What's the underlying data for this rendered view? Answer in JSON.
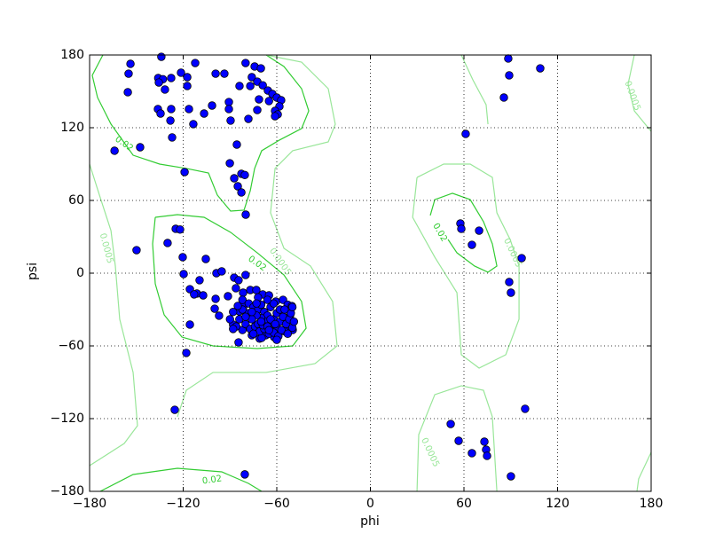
{
  "chart_data": {
    "type": "scatter",
    "x_label": "phi",
    "y_label": "psi",
    "xlim": [
      -180,
      180
    ],
    "ylim": [
      -180,
      180
    ],
    "xticks": [
      {
        "value": -180,
        "label": "−180"
      },
      {
        "value": -120,
        "label": "−120"
      },
      {
        "value": -60,
        "label": "−60"
      },
      0,
      60,
      120,
      180
    ],
    "yticks": [
      {
        "value": -180,
        "label": "−180"
      },
      {
        "value": -120,
        "label": "−120"
      },
      {
        "value": -60,
        "label": "−60"
      },
      0,
      60,
      120,
      180
    ],
    "grid": true,
    "series": [
      {
        "color": "#0000ff",
        "x": [
          -153.8,
          -155,
          -155.5,
          -134,
          -136,
          -133,
          -135.6,
          -131.7,
          -127.7,
          -121.4,
          -117.4,
          -117.4,
          -112.3,
          -99.2,
          -93.6,
          -80,
          -74.2,
          -70.2,
          -76,
          -72.5,
          -77,
          -69,
          -83.9,
          -65.7,
          -62.8,
          -60,
          -57.2,
          -58.3,
          -61.1,
          -59.4,
          -61.1,
          -65,
          -71.4,
          -72.5,
          -78.2,
          -90.7,
          -90.7,
          -89.6,
          -101.5,
          -106.6,
          -116.3,
          -113.5,
          -127.7,
          -128.2,
          -136.2,
          -134.5,
          -127.1,
          -147.6,
          -164,
          -85.6,
          -90.1,
          -87.3,
          -85,
          -82.7,
          -80.5,
          -82.7,
          -79.9,
          -119.1,
          -149.9,
          -130,
          -124.8,
          -122,
          -120.3,
          -105.5,
          -119.7,
          -115.7,
          -109.5,
          -111.2,
          -107.2,
          -113,
          -115.7,
          -118,
          -125.4,
          -98.7,
          -95.3,
          -99.2,
          -99.8,
          -97,
          -91.3,
          -87.3,
          -84.5,
          -80,
          -86.2,
          -81.6,
          -77,
          -73.1,
          -69,
          -65,
          -60.6,
          -56,
          -53,
          -50.3,
          -51.5,
          -49.8,
          -54,
          -60,
          -67,
          -71,
          -76,
          -82,
          -88,
          -81,
          -77,
          -84,
          -84.5,
          -69.7,
          -61.7,
          -80.5,
          -82,
          -78,
          -75,
          -72,
          -70,
          -68,
          -66,
          -64,
          -62,
          -60,
          -58,
          -56,
          -54,
          -52,
          -50,
          -55,
          -60,
          -63,
          -67,
          -70,
          -73,
          -76,
          -79,
          -82,
          -85,
          -88,
          -80,
          -77,
          -74,
          -71,
          -68,
          -65,
          -62,
          -59,
          -57,
          -53,
          -51,
          -49,
          -84,
          -86,
          -75,
          -72,
          -69,
          -66,
          -64,
          -61,
          -58,
          -62,
          -66,
          -72,
          -76,
          -70,
          -80,
          -73,
          -65,
          -55,
          -50,
          -90,
          -88,
          -60,
          88.4,
          89,
          85.6,
          108.9,
          61.1,
          57.7,
          58.3,
          69.7,
          65.1,
          97,
          89,
          90.1,
          99.2,
          51.5,
          56.6,
          65.1,
          73.1,
          74.2,
          74.8,
          90.1
        ],
        "y": [
          172.7,
          164.6,
          149.3,
          178.5,
          161,
          160,
          157.3,
          151.5,
          161,
          165.4,
          161.7,
          154.4,
          173.4,
          164.6,
          164.6,
          173.4,
          170.5,
          169,
          161.7,
          158,
          154.4,
          155,
          154.4,
          150.7,
          147.8,
          144.9,
          142.7,
          137.6,
          133.9,
          131,
          129.5,
          142,
          143.4,
          134.6,
          127.3,
          141.2,
          135.4,
          125.9,
          138.3,
          131.7,
          135.4,
          123,
          135.4,
          125.9,
          135.4,
          131.7,
          112,
          103.9,
          101,
          106.1,
          90.7,
          78.3,
          71.7,
          82,
          81,
          66.6,
          48.3,
          83.4,
          19,
          24.9,
          36.6,
          36,
          13.2,
          11.7,
          -0.7,
          -13.2,
          -5.8,
          -16.8,
          -18.3,
          -17.5,
          -42.4,
          -65.8,
          -112.7,
          0,
          1.5,
          -21.2,
          -29.3,
          -35.1,
          -19,
          -3.7,
          -5.8,
          -1.5,
          -12.4,
          -16.1,
          -13.9,
          -13.9,
          -17.5,
          -18.3,
          -23.4,
          -22,
          -26,
          -27.1,
          -35.1,
          -46.9,
          -45.4,
          -46.9,
          -51.2,
          -54,
          -51.2,
          -46.9,
          -42.4,
          -26.6,
          -35.9,
          -31.5,
          -57.1,
          -53.4,
          -52.7,
          -166,
          -22,
          -25,
          -28,
          -30,
          -26,
          -32,
          -35,
          -28,
          -38,
          -33,
          -40,
          -36,
          -42,
          -38,
          -45,
          -48,
          -45,
          -42,
          -40,
          -37,
          -35,
          -38,
          -33,
          -30,
          -27,
          -32,
          -42,
          -46,
          -44,
          -48,
          -46,
          -50,
          -49,
          -52,
          -47,
          -50,
          -33,
          -40,
          -38,
          -44,
          -50,
          -42,
          -43,
          -44,
          -38,
          -42,
          -30,
          -25,
          -22,
          -20,
          -32,
          -40,
          -36,
          -25,
          -47,
          -30,
          -28,
          -38,
          -46,
          -55,
          177.1,
          163.2,
          144.9,
          169,
          114.9,
          41,
          36.6,
          35.1,
          23.4,
          12.4,
          -7.3,
          -16.1,
          -111.9,
          -124.4,
          -138.3,
          -148.5,
          -139,
          -145.6,
          -150.7,
          -167.6
        ]
      }
    ],
    "contours": [
      {
        "level": 0.02,
        "color": "#33cc33",
        "lines": [
          {
            "phi": [
              -171.5,
              -178.3,
              -174.9,
              -166.3,
              -152.1,
              -135.1,
              -118,
              -103.8,
              -98.1,
              -89.6,
              -81,
              -77,
              -74.2,
              -69.7,
              -58.3,
              -44.1,
              -39.5,
              -44.1,
              -55.4,
              -66.8
            ],
            "psi": [
              180,
              163.2,
              144.9,
              123,
              97.3,
              90,
              86.4,
              82.7,
              64.4,
              51.2,
              52,
              68,
              86.4,
              101,
              109.8,
              119.3,
              133.9,
              152.2,
              170.5,
              180
            ]
          },
          {
            "phi": [
              -137.9,
              -139.6,
              -137.9,
              -132.2,
              -120.8,
              -100.9,
              -72.5,
              -49.8,
              -41.2,
              -44.1,
              -55.4,
              -72.5,
              -89.6,
              -106.6,
              -123.7,
              -137.9
            ],
            "psi": [
              46.1,
              24.2,
              -8.8,
              -34.4,
              -52.7,
              -60,
              -62.2,
              -60,
              -45.4,
              -23.4,
              -1.5,
              16.8,
              33.7,
              46.1,
              48.3,
              46.1
            ]
          },
          {
            "phi": [
              38.4,
              41.3,
              52.6,
              64,
              72.5,
              78.2,
              81.1,
              75.4,
              66.8,
              55.5,
              49.8
            ],
            "psi": [
              47.6,
              60.7,
              65.9,
              60.7,
              42.5,
              24.2,
              5.9,
              0.8,
              5.9,
              16.8,
              27.8
            ]
          },
          {
            "phi": [
              -173.2,
              -152.1,
              -123.7,
              -95.3,
              -78.2,
              -69.7
            ],
            "psi": [
              -180,
              -166.1,
              -161,
              -163.9,
              -173.4,
              -180
            ]
          }
        ]
      },
      {
        "level": 0.0005,
        "color": "#99e699",
        "lines": [
          {
            "phi": [
              -180,
              -173.7,
              -166.3,
              -163.5,
              -160.7,
              -152.1,
              -149.3,
              -157.8,
              -180
            ],
            "psi": [
              90,
              64.4,
              35.1,
              5.9,
              -38,
              -81.9,
              -125.8,
              -140.5,
              -158.8
            ]
          },
          {
            "phi": [
              -66.8,
              -44.1,
              -27,
              -22.5,
              -27,
              -49.8,
              -61.1,
              -64,
              -55.4,
              -38.4,
              -24.2,
              -21.3,
              -35.5,
              -66.8,
              -100.9,
              -118,
              -123.7
            ],
            "psi": [
              180,
              174.1,
              152.2,
              122.9,
              108.3,
              101,
              86.4,
              49.8,
              20.5,
              5.9,
              -23.4,
              -60,
              -74.6,
              -81.9,
              -81.9,
              -96.6,
              -118.5
            ]
          },
          {
            "phi": [
              29.9,
              47,
              64,
              78.2,
              81.1,
              89.6,
              95.3,
              95.3,
              86.8,
              69.7,
              58.3,
              55.5,
              41.3,
              27.1,
              29.9
            ],
            "psi": [
              79,
              90,
              90,
              79,
              49.8,
              27.8,
              5.9,
              -38,
              -67.3,
              -78.3,
              -67.3,
              -16.1,
              13.2,
              46.1,
              79
            ]
          },
          {
            "phi": [
              58.3,
              65.7,
              74.2,
              75.4
            ],
            "psi": [
              180,
              159.5,
              139,
              122.9
            ]
          },
          {
            "phi": [
              169.2,
              165.2,
              169.2,
              180
            ],
            "psi": [
              180,
              155.9,
              133.9,
              117
            ]
          },
          {
            "phi": [
              29.9,
              31,
              41.3,
              58.3,
              72.5,
              78.2,
              81.1
            ],
            "psi": [
              -180,
              -133.2,
              -100.2,
              -92.9,
              -96.6,
              -118.5,
              -180
            ]
          },
          {
            "phi": [
              180,
              172,
              170.9
            ],
            "psi": [
              -147.8,
              -169.7,
              -180
            ]
          }
        ]
      }
    ]
  }
}
